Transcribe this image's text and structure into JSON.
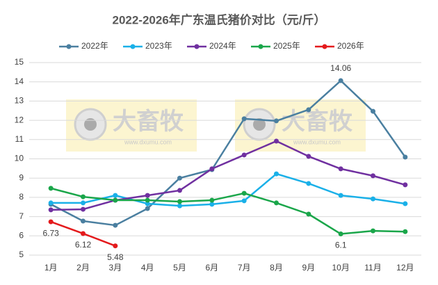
{
  "chart_data": {
    "type": "line",
    "title": "2022-2026年广东温氏猪价对比（元/斤）",
    "watermark": "大畜牧",
    "watermark_url": "www.dxumu.com",
    "categories": [
      "1月",
      "2月",
      "3月",
      "4月",
      "5月",
      "6月",
      "7月",
      "8月",
      "9月",
      "10月",
      "11月",
      "12月"
    ],
    "ylim": [
      5,
      15
    ],
    "yticks": [
      5,
      6,
      7,
      8,
      9,
      10,
      11,
      12,
      13,
      14,
      15
    ],
    "grid": true,
    "legend": "top",
    "series": [
      {
        "name": "2022年",
        "color": "#4a7fa0",
        "values": [
          7.64,
          6.77,
          6.55,
          7.42,
          9.0,
          9.44,
          12.08,
          11.97,
          12.55,
          14.06,
          12.47,
          10.09
        ],
        "value_labels": [
          null,
          null,
          null,
          null,
          null,
          null,
          null,
          null,
          null,
          "14.06",
          null,
          null
        ]
      },
      {
        "name": "2023年",
        "color": "#1ab0e8",
        "values": [
          7.71,
          7.71,
          8.1,
          7.67,
          7.56,
          7.64,
          7.82,
          9.22,
          8.72,
          8.1,
          7.92,
          7.67
        ]
      },
      {
        "name": "2024年",
        "color": "#7030a0",
        "values": [
          7.35,
          7.38,
          7.85,
          8.1,
          8.36,
          9.48,
          10.2,
          10.92,
          10.13,
          9.48,
          9.12,
          8.65
        ]
      },
      {
        "name": "2025年",
        "color": "#1aa64a",
        "values": [
          8.47,
          8.03,
          7.85,
          7.85,
          7.78,
          7.85,
          8.21,
          7.71,
          7.13,
          6.1,
          6.26,
          6.22
        ],
        "value_labels": [
          null,
          null,
          null,
          null,
          null,
          null,
          null,
          null,
          null,
          "6.1",
          null,
          null
        ]
      },
      {
        "name": "2026年",
        "color": "#e41a1c",
        "values": [
          6.73,
          6.12,
          5.48,
          null,
          null,
          null,
          null,
          null,
          null,
          null,
          null,
          null
        ],
        "value_labels": [
          "6.73",
          "6.12",
          "5.48",
          null,
          null,
          null,
          null,
          null,
          null,
          null,
          null,
          null
        ]
      }
    ]
  }
}
